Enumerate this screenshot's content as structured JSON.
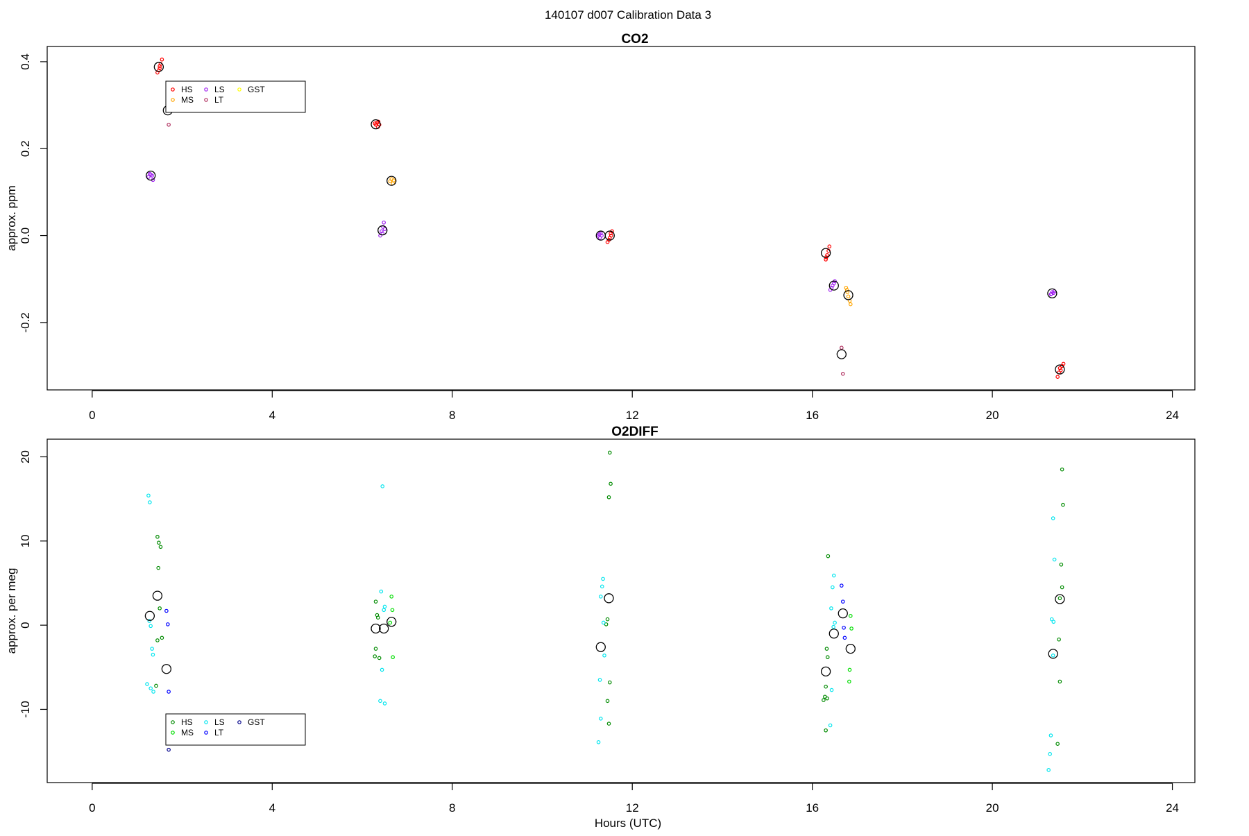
{
  "page_title": "140107   d007   Calibration Data 3",
  "chart_data": [
    {
      "type": "scatter",
      "title": "CO2",
      "xlabel": "",
      "ylabel": "approx. ppm",
      "xlim": [
        -1,
        24.5
      ],
      "ylim": [
        -0.355,
        0.435
      ],
      "x_ticks": [
        0,
        4,
        8,
        12,
        16,
        20,
        24
      ],
      "y_ticks": [
        -0.2,
        0.0,
        0.2,
        0.4
      ],
      "y_tick_labels": [
        "-0.2",
        "0.0",
        "0.2",
        "0.4"
      ],
      "grid": false,
      "legend": {
        "placement": "top-left",
        "entries": [
          {
            "label": "HS",
            "color": "#ff0000"
          },
          {
            "label": "MS",
            "color": "#ffa500"
          },
          {
            "label": "LS",
            "color": "#a020f0"
          },
          {
            "label": "LT",
            "color": "#b03060"
          },
          {
            "label": "GST",
            "color": "#ffff00"
          }
        ]
      },
      "series": [
        {
          "key": "HS",
          "color": "#ff0000",
          "points": [
            [
              1.45,
              0.375
            ],
            [
              1.48,
              0.38
            ],
            [
              1.5,
              0.39
            ],
            [
              1.52,
              0.395
            ],
            [
              1.55,
              0.405
            ],
            [
              1.5,
              0.385
            ],
            [
              6.3,
              0.255
            ],
            [
              6.33,
              0.26
            ],
            [
              6.35,
              0.25
            ],
            [
              6.38,
              0.255
            ],
            [
              6.28,
              0.258
            ],
            [
              6.36,
              0.262
            ],
            [
              11.45,
              -0.015
            ],
            [
              11.5,
              -0.005
            ],
            [
              11.52,
              0.005
            ],
            [
              11.55,
              0.01
            ],
            [
              11.48,
              -0.01
            ],
            [
              11.53,
              0.0
            ],
            [
              16.3,
              -0.055
            ],
            [
              16.33,
              -0.045
            ],
            [
              16.36,
              -0.035
            ],
            [
              16.38,
              -0.025
            ],
            [
              16.31,
              -0.05
            ],
            [
              21.45,
              -0.325
            ],
            [
              21.48,
              -0.315
            ],
            [
              21.5,
              -0.305
            ],
            [
              21.55,
              -0.3
            ],
            [
              21.58,
              -0.295
            ],
            [
              21.52,
              -0.31
            ]
          ]
        },
        {
          "key": "MS",
          "color": "#ffa500",
          "points": [
            [
              6.62,
              0.125
            ],
            [
              6.65,
              0.13
            ],
            [
              6.68,
              0.12
            ],
            [
              6.7,
              0.127
            ],
            [
              16.75,
              -0.12
            ],
            [
              16.78,
              -0.13
            ],
            [
              16.8,
              -0.14
            ],
            [
              16.83,
              -0.15
            ],
            [
              16.85,
              -0.158
            ],
            [
              16.77,
              -0.125
            ]
          ]
        },
        {
          "key": "LS",
          "color": "#a020f0",
          "points": [
            [
              1.25,
              0.135
            ],
            [
              1.3,
              0.14
            ],
            [
              1.33,
              0.138
            ],
            [
              1.35,
              0.128
            ],
            [
              1.28,
              0.142
            ],
            [
              6.4,
              0.0
            ],
            [
              6.43,
              0.01
            ],
            [
              6.46,
              0.02
            ],
            [
              6.48,
              0.03
            ],
            [
              6.5,
              0.015
            ],
            [
              6.45,
              0.005
            ],
            [
              11.25,
              0.0
            ],
            [
              11.28,
              -0.005
            ],
            [
              11.3,
              0.005
            ],
            [
              11.32,
              0.0
            ],
            [
              11.27,
              0.003
            ],
            [
              16.4,
              -0.125
            ],
            [
              16.45,
              -0.115
            ],
            [
              16.48,
              -0.11
            ],
            [
              16.5,
              -0.105
            ],
            [
              16.43,
              -0.12
            ],
            [
              21.3,
              -0.135
            ],
            [
              21.33,
              -0.13
            ],
            [
              21.36,
              -0.132
            ],
            [
              21.38,
              -0.128
            ],
            [
              21.31,
              -0.134
            ]
          ]
        },
        {
          "key": "LT",
          "color": "#b03060",
          "points": [
            [
              1.7,
              0.255
            ],
            [
              16.65,
              -0.258
            ],
            [
              16.68,
              -0.318
            ]
          ]
        },
        {
          "key": "GST",
          "color": "#ffff00",
          "points": []
        }
      ],
      "means": [
        [
          1.48,
          0.388
        ],
        [
          1.68,
          0.288
        ],
        [
          1.3,
          0.138
        ],
        [
          6.3,
          0.256
        ],
        [
          6.65,
          0.126
        ],
        [
          6.45,
          0.012
        ],
        [
          11.3,
          0.0
        ],
        [
          11.5,
          0.0
        ],
        [
          16.3,
          -0.04
        ],
        [
          16.48,
          -0.115
        ],
        [
          16.8,
          -0.137
        ],
        [
          16.65,
          -0.273
        ],
        [
          21.33,
          -0.133
        ],
        [
          21.5,
          -0.308
        ]
      ]
    },
    {
      "type": "scatter",
      "title": "O2DIFF",
      "xlabel": "Hours (UTC)",
      "ylabel": "approx. per meg",
      "xlim": [
        -1,
        24.5
      ],
      "ylim": [
        -18.7,
        22.1
      ],
      "x_ticks": [
        0,
        4,
        8,
        12,
        16,
        20,
        24
      ],
      "y_ticks": [
        -10,
        0,
        10,
        20
      ],
      "y_tick_labels": [
        "-10",
        "0",
        "10",
        "20"
      ],
      "grid": false,
      "legend": {
        "placement": "bottom-left",
        "entries": [
          {
            "label": "HS",
            "color": "#008b00"
          },
          {
            "label": "MS",
            "color": "#00dd00"
          },
          {
            "label": "LS",
            "color": "#00e5ee"
          },
          {
            "label": "LT",
            "color": "#0000ff"
          },
          {
            "label": "GST",
            "color": "#00008b"
          }
        ]
      },
      "series": [
        {
          "key": "HS",
          "color": "#008b00",
          "points": [
            [
              1.45,
              10.5
            ],
            [
              1.48,
              9.8
            ],
            [
              1.52,
              9.3
            ],
            [
              1.47,
              6.8
            ],
            [
              1.5,
              2.0
            ],
            [
              1.55,
              -1.5
            ],
            [
              1.45,
              -1.8
            ],
            [
              1.42,
              -7.2
            ],
            [
              6.3,
              2.8
            ],
            [
              6.33,
              1.2
            ],
            [
              6.35,
              0.9
            ],
            [
              6.3,
              -2.8
            ],
            [
              6.28,
              -3.7
            ],
            [
              6.38,
              -3.9
            ],
            [
              11.5,
              20.5
            ],
            [
              11.52,
              16.8
            ],
            [
              11.48,
              15.2
            ],
            [
              11.45,
              0.7
            ],
            [
              11.42,
              0.1
            ],
            [
              11.5,
              -6.8
            ],
            [
              11.45,
              -9.0
            ],
            [
              11.48,
              -11.7
            ],
            [
              16.35,
              8.2
            ],
            [
              16.32,
              -2.8
            ],
            [
              16.34,
              -3.8
            ],
            [
              16.3,
              -7.3
            ],
            [
              16.28,
              -8.5
            ],
            [
              16.25,
              -8.9
            ],
            [
              16.33,
              -8.7
            ],
            [
              16.3,
              -12.5
            ],
            [
              21.55,
              18.5
            ],
            [
              21.57,
              14.3
            ],
            [
              21.53,
              7.2
            ],
            [
              21.55,
              4.5
            ],
            [
              21.5,
              3.2
            ],
            [
              21.48,
              -1.7
            ],
            [
              21.5,
              -6.7
            ],
            [
              21.45,
              -14.1
            ]
          ]
        },
        {
          "key": "MS",
          "color": "#00dd00",
          "points": [
            [
              6.65,
              3.4
            ],
            [
              6.67,
              1.8
            ],
            [
              6.62,
              0.3
            ],
            [
              6.68,
              -3.8
            ],
            [
              16.85,
              1.1
            ],
            [
              16.87,
              -0.4
            ],
            [
              16.83,
              -5.3
            ],
            [
              16.82,
              -6.7
            ]
          ]
        },
        {
          "key": "LS",
          "color": "#00e5ee",
          "points": [
            [
              1.25,
              15.4
            ],
            [
              1.28,
              14.6
            ],
            [
              1.27,
              0.5
            ],
            [
              1.3,
              -0.1
            ],
            [
              1.33,
              -2.8
            ],
            [
              1.35,
              -3.5
            ],
            [
              1.22,
              -7.0
            ],
            [
              1.3,
              -7.5
            ],
            [
              1.36,
              -7.9
            ],
            [
              6.45,
              16.5
            ],
            [
              6.42,
              4.0
            ],
            [
              6.5,
              2.2
            ],
            [
              6.48,
              1.8
            ],
            [
              6.44,
              -5.3
            ],
            [
              6.4,
              -9.0
            ],
            [
              6.5,
              -9.3
            ],
            [
              11.35,
              5.5
            ],
            [
              11.33,
              4.6
            ],
            [
              11.3,
              3.4
            ],
            [
              11.36,
              0.3
            ],
            [
              11.38,
              -3.6
            ],
            [
              11.28,
              -6.5
            ],
            [
              11.3,
              -11.1
            ],
            [
              11.25,
              -13.9
            ],
            [
              16.48,
              5.9
            ],
            [
              16.45,
              4.5
            ],
            [
              16.42,
              2.0
            ],
            [
              16.5,
              0.3
            ],
            [
              16.47,
              -0.2
            ],
            [
              16.43,
              -7.7
            ],
            [
              16.4,
              -11.9
            ],
            [
              21.35,
              12.7
            ],
            [
              21.38,
              7.8
            ],
            [
              21.32,
              0.7
            ],
            [
              21.36,
              0.4
            ],
            [
              21.35,
              -3.6
            ],
            [
              21.3,
              -13.1
            ],
            [
              21.28,
              -15.3
            ],
            [
              21.25,
              -17.2
            ]
          ]
        },
        {
          "key": "LT",
          "color": "#0000ff",
          "points": [
            [
              1.65,
              1.7
            ],
            [
              1.68,
              0.1
            ],
            [
              1.7,
              -7.9
            ],
            [
              16.65,
              4.7
            ],
            [
              16.68,
              2.8
            ],
            [
              16.7,
              -0.3
            ],
            [
              16.72,
              -1.5
            ]
          ]
        },
        {
          "key": "GST",
          "color": "#00008b",
          "points": [
            [
              1.7,
              -14.8
            ]
          ]
        }
      ],
      "means": [
        [
          1.28,
          1.1
        ],
        [
          1.45,
          3.5
        ],
        [
          1.65,
          -5.2
        ],
        [
          6.3,
          -0.4
        ],
        [
          6.48,
          -0.4
        ],
        [
          6.65,
          0.4
        ],
        [
          11.3,
          -2.6
        ],
        [
          11.48,
          3.2
        ],
        [
          16.3,
          -5.5
        ],
        [
          16.48,
          -1.0
        ],
        [
          16.68,
          1.4
        ],
        [
          16.85,
          -2.8
        ],
        [
          21.35,
          -3.4
        ],
        [
          21.5,
          3.1
        ]
      ]
    }
  ]
}
